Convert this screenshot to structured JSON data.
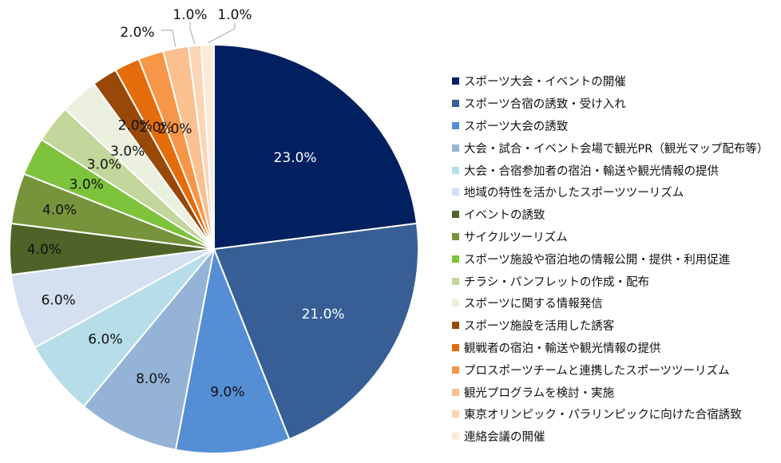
{
  "chart_data": {
    "type": "pie",
    "title": "",
    "legend_position": "right",
    "slices": [
      {
        "label": "スポーツ大会・イベントの開催",
        "value": 23.0,
        "display": "23.0%",
        "color": "#002060"
      },
      {
        "label": "スポーツ合宿の誘致・受け入れ",
        "value": 21.0,
        "display": "21.0%",
        "color": "#375F96"
      },
      {
        "label": "スポーツ大会の誘致",
        "value": 9.0,
        "display": "9.0%",
        "color": "#558ED5"
      },
      {
        "label": "大会・試合・イベント会場で観光PR（観光マップ配布等）",
        "value": 8.0,
        "display": "8.0%",
        "color": "#95B3D7"
      },
      {
        "label": "大会・合宿参加者の宿泊・輸送や観光情報の提供",
        "value": 6.0,
        "display": "6.0%",
        "color": "#B7DEE8"
      },
      {
        "label": "地域の特性を活かしたスポーツツーリズム",
        "value": 6.0,
        "display": "6.0%",
        "color": "#D4E0F0"
      },
      {
        "label": "イベントの誘致",
        "value": 4.0,
        "display": "4.0%",
        "color": "#4F6228"
      },
      {
        "label": "サイクルツーリズム",
        "value": 4.0,
        "display": "4.0%",
        "color": "#77933C"
      },
      {
        "label": "スポーツ施設や宿泊地の情報公開・提供・利用促進",
        "value": 3.0,
        "display": "3.0%",
        "color": "#7DC33B"
      },
      {
        "label": "チラシ・パンフレットの作成・配布",
        "value": 3.0,
        "display": "3.0%",
        "color": "#C3D69B"
      },
      {
        "label": "スポーツに関する情報発信",
        "value": 3.0,
        "display": "3.0%",
        "color": "#EBF1DE"
      },
      {
        "label": "スポーツ施設を活用した誘客",
        "value": 2.0,
        "display": "2.0%",
        "color": "#984807"
      },
      {
        "label": "観戦者の宿泊・輸送や観光情報の提供",
        "value": 2.0,
        "display": "2.0%",
        "color": "#E46C0A"
      },
      {
        "label": "プロスポーツチームと連携したスポーツツーリズム",
        "value": 2.0,
        "display": "2.0%",
        "color": "#F79646"
      },
      {
        "label": "観光プログラムを検討・実施",
        "value": 2.0,
        "display": "2.0%",
        "color": "#FAC090"
      },
      {
        "label": "東京オリンピック・パラリンピックに向けた合宿誘致",
        "value": 1.0,
        "display": "1.0%",
        "color": "#FCD5B5"
      },
      {
        "label": "連絡会議の開催",
        "value": 1.0,
        "display": "1.0%",
        "color": "#FDE9D9"
      }
    ]
  }
}
